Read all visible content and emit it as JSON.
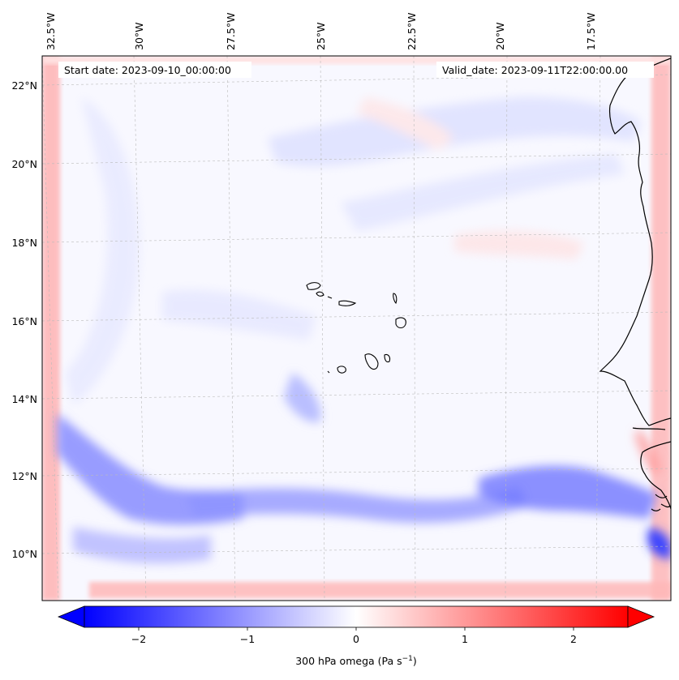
{
  "map": {
    "start_date": "Start date: 2023-09-10_00:00:00",
    "valid_date": "Valid_date: 2023-09-11T22:00:00.00",
    "lon_labels": [
      "32.5°W",
      "30°W",
      "27.5°W",
      "25°W",
      "22.5°W",
      "20°W",
      "17.5°W"
    ],
    "lat_labels": [
      "22°N",
      "20°N",
      "18°N",
      "16°N",
      "14°N",
      "12°N",
      "10°N"
    ],
    "gridlines": true
  },
  "colorbar": {
    "ticks": [
      "−2",
      "−1",
      "0",
      "1",
      "2"
    ],
    "tick_values": [
      -2,
      -1,
      0,
      1,
      2
    ],
    "range": [
      -2.5,
      2.5
    ],
    "extend": "both",
    "label_main": "300 hPa omega (Pa s",
    "label_sup": "−1",
    "label_end": ")",
    "colors": {
      "negative": "#0000ff",
      "zero": "#ffffff",
      "positive": "#ff0000"
    }
  },
  "colors": {
    "coastline": "#000000",
    "gridline": "#bbbbbb"
  }
}
